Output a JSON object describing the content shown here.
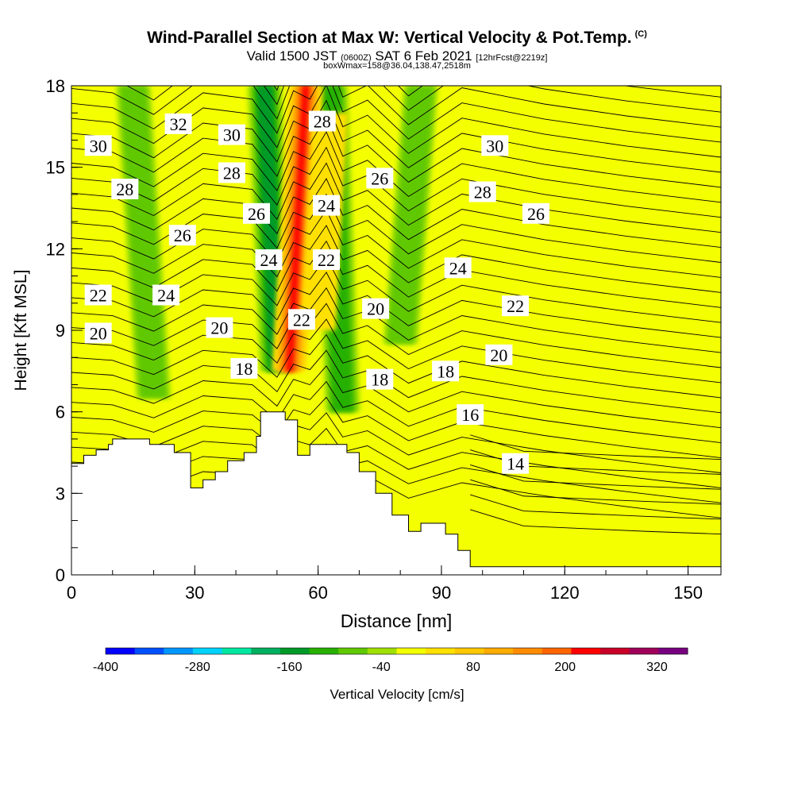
{
  "header": {
    "title": "Wind-Parallel Section at Max W: Vertical Velocity & Pot.Temp.",
    "copyright": "(C)",
    "valid_prefix": "Valid 1500 JST",
    "valid_utc": "(0600Z)",
    "valid_date": "SAT 6 Feb 2021",
    "forecast": "[12hrFcst@2219z]",
    "box_info": "boxWmax=158@36.04,138.47,2518m"
  },
  "chart_data": {
    "type": "heatmap",
    "xlabel": "Distance [nm]",
    "ylabel": "Height [Kft MSL]",
    "xlim": [
      0,
      158
    ],
    "ylim": [
      0,
      18
    ],
    "x_ticks": [
      0,
      30,
      60,
      90,
      120,
      150
    ],
    "y_ticks": [
      0,
      3,
      6,
      9,
      12,
      15,
      18
    ],
    "colorbar": {
      "label": "Vertical Velocity [cm/s]",
      "min": -400,
      "max": 360,
      "step": 40,
      "tick_labels": [
        -400,
        -280,
        -160,
        -40,
        80,
        200,
        320
      ],
      "colors": [
        "#0000ff",
        "#0050ff",
        "#0096ff",
        "#00d2ff",
        "#00e8a0",
        "#00b060",
        "#009a28",
        "#28b000",
        "#60c800",
        "#a0e000",
        "#f4ff00",
        "#ffe000",
        "#ffc800",
        "#ffac00",
        "#ff8c00",
        "#ff6400",
        "#ff0000",
        "#c80028",
        "#a0005a",
        "#780080"
      ]
    },
    "updrafts": [
      {
        "x_bottom": 53,
        "x_top": 57,
        "y_bottom": 7.5,
        "y_top": 18,
        "peak_w": 260
      },
      {
        "x_bottom": 60,
        "x_top": 63,
        "y_bottom": 9,
        "y_top": 17,
        "peak_w": 40
      }
    ],
    "downdrafts": [
      {
        "x_bottom": 50,
        "x_top": 47,
        "y_bottom": 7.5,
        "y_top": 18,
        "peak_w": -160
      },
      {
        "x_bottom": 66,
        "x_top": 63,
        "y_bottom": 6,
        "y_top": 18,
        "peak_w": -120
      },
      {
        "x_bottom": 80,
        "x_top": 85,
        "y_bottom": 8.5,
        "y_top": 18,
        "peak_w": -80
      },
      {
        "x_bottom": 20,
        "x_top": 15,
        "y_bottom": 6.5,
        "y_top": 18,
        "peak_w": -80
      }
    ],
    "terrain": [
      [
        0,
        4.1
      ],
      [
        3,
        4.1
      ],
      [
        3,
        4.4
      ],
      [
        6,
        4.4
      ],
      [
        6,
        4.6
      ],
      [
        9,
        4.6
      ],
      [
        9,
        4.8
      ],
      [
        10,
        4.8
      ],
      [
        10,
        5.0
      ],
      [
        19,
        5.0
      ],
      [
        19,
        4.8
      ],
      [
        25,
        4.8
      ],
      [
        25,
        4.5
      ],
      [
        29,
        4.5
      ],
      [
        29,
        3.2
      ],
      [
        32,
        3.2
      ],
      [
        32,
        3.5
      ],
      [
        35,
        3.5
      ],
      [
        35,
        3.8
      ],
      [
        38,
        3.8
      ],
      [
        38,
        4.2
      ],
      [
        42,
        4.2
      ],
      [
        42,
        4.5
      ],
      [
        45,
        4.5
      ],
      [
        45,
        5.1
      ],
      [
        46,
        5.1
      ],
      [
        46,
        6.0
      ],
      [
        52,
        6.0
      ],
      [
        52,
        5.7
      ],
      [
        55,
        5.7
      ],
      [
        55,
        4.4
      ],
      [
        58,
        4.4
      ],
      [
        58,
        4.8
      ],
      [
        67,
        4.8
      ],
      [
        67,
        4.5
      ],
      [
        70,
        4.5
      ],
      [
        70,
        3.8
      ],
      [
        74,
        3.8
      ],
      [
        74,
        3.0
      ],
      [
        78,
        3.0
      ],
      [
        78,
        2.2
      ],
      [
        82,
        2.2
      ],
      [
        82,
        1.6
      ],
      [
        85,
        1.6
      ],
      [
        85,
        1.9
      ],
      [
        91,
        1.9
      ],
      [
        91,
        1.5
      ],
      [
        94,
        1.5
      ],
      [
        94,
        0.9
      ],
      [
        97,
        0.9
      ],
      [
        97,
        0.3
      ],
      [
        158,
        0.3
      ]
    ],
    "theta_labels": [
      {
        "text": "32",
        "x": 26,
        "y": 16.6
      },
      {
        "text": "30",
        "x": 6.5,
        "y": 15.8
      },
      {
        "text": "30",
        "x": 39,
        "y": 16.2
      },
      {
        "text": "28",
        "x": 13,
        "y": 14.2
      },
      {
        "text": "28",
        "x": 39,
        "y": 14.8
      },
      {
        "text": "28",
        "x": 61,
        "y": 16.7
      },
      {
        "text": "26",
        "x": 27,
        "y": 12.5
      },
      {
        "text": "26",
        "x": 45,
        "y": 13.3
      },
      {
        "text": "26",
        "x": 75,
        "y": 14.6
      },
      {
        "text": "24",
        "x": 48,
        "y": 11.6
      },
      {
        "text": "24",
        "x": 62,
        "y": 13.6
      },
      {
        "text": "24",
        "x": 23,
        "y": 10.3
      },
      {
        "text": "24",
        "x": 94,
        "y": 11.3
      },
      {
        "text": "22",
        "x": 6.5,
        "y": 10.3
      },
      {
        "text": "22",
        "x": 62,
        "y": 11.6
      },
      {
        "text": "22",
        "x": 56,
        "y": 9.4
      },
      {
        "text": "22",
        "x": 108,
        "y": 9.9
      },
      {
        "text": "20",
        "x": 6.5,
        "y": 8.9
      },
      {
        "text": "20",
        "x": 36,
        "y": 9.1
      },
      {
        "text": "20",
        "x": 74,
        "y": 9.8
      },
      {
        "text": "20",
        "x": 104,
        "y": 8.1
      },
      {
        "text": "18",
        "x": 42,
        "y": 7.6
      },
      {
        "text": "18",
        "x": 75,
        "y": 7.2
      },
      {
        "text": "18",
        "x": 91,
        "y": 7.5
      },
      {
        "text": "16",
        "x": 97,
        "y": 5.9
      },
      {
        "text": "30",
        "x": 103,
        "y": 15.8
      },
      {
        "text": "28",
        "x": 100,
        "y": 14.1
      },
      {
        "text": "26",
        "x": 113,
        "y": 13.3
      },
      {
        "text": "14",
        "x": 108,
        "y": 4.1
      }
    ]
  }
}
